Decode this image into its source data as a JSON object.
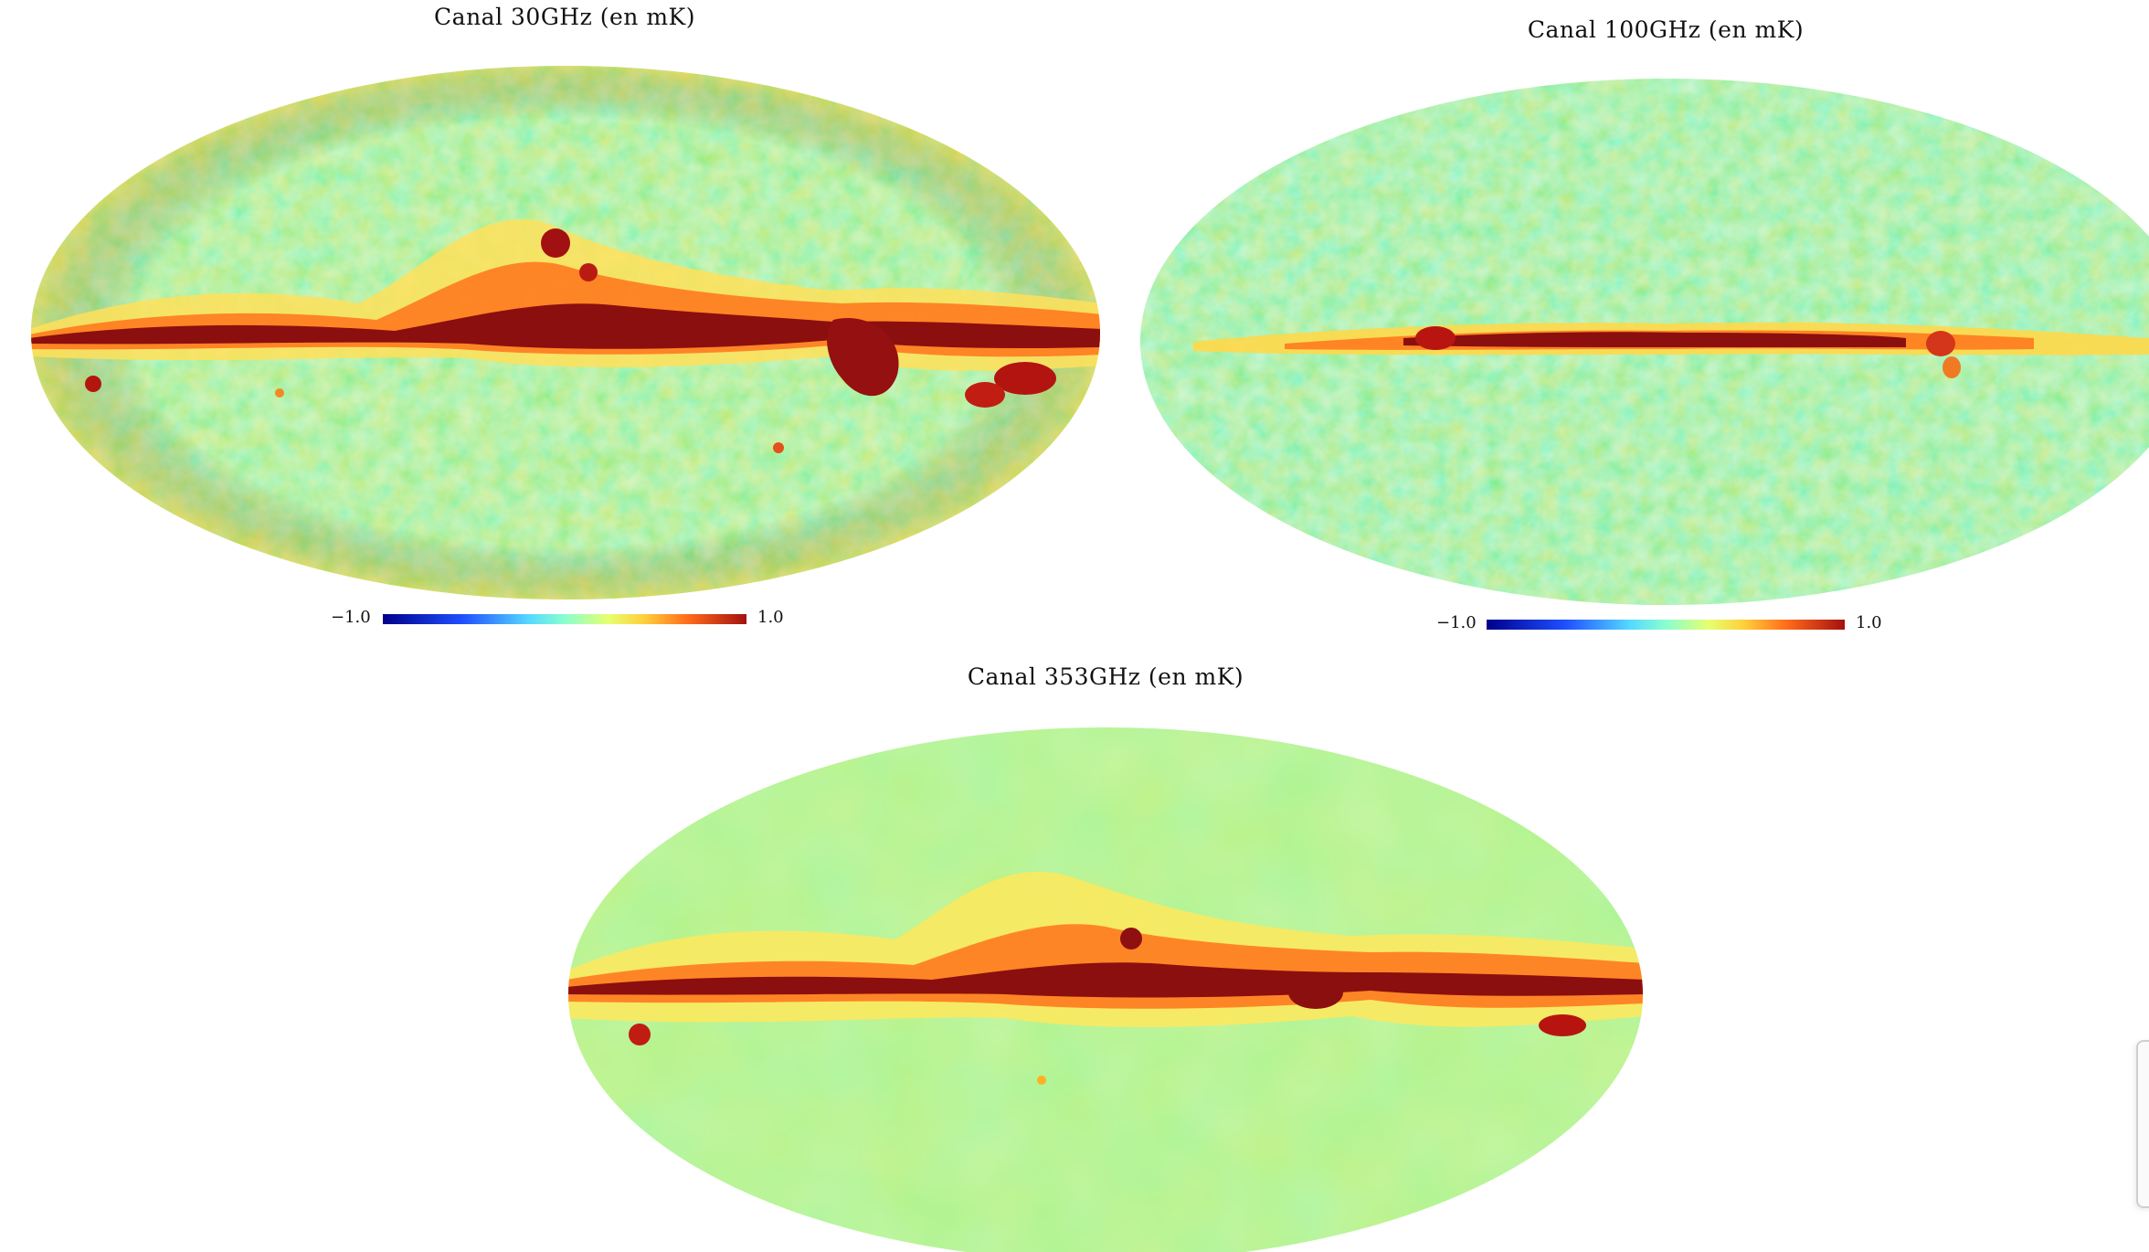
{
  "maps": [
    {
      "title": "Canal 30GHz (en mK)",
      "cbar_min": "−1.0",
      "cbar_max": "1.0",
      "band_strength": "strong",
      "background": "noisy"
    },
    {
      "title": "Canal 100GHz (en mK)",
      "cbar_min": "−1.0",
      "cbar_max": "1.0",
      "band_strength": "thin",
      "background": "noisy"
    },
    {
      "title": "Canal 353GHz (en mK)",
      "band_strength": "strong",
      "background": "smooth"
    }
  ],
  "colormap": [
    "#00008b",
    "#1f4fff",
    "#55d8ff",
    "#88ffd0",
    "#e6ff70",
    "#ffcf3a",
    "#ff6a1a",
    "#a41010"
  ]
}
